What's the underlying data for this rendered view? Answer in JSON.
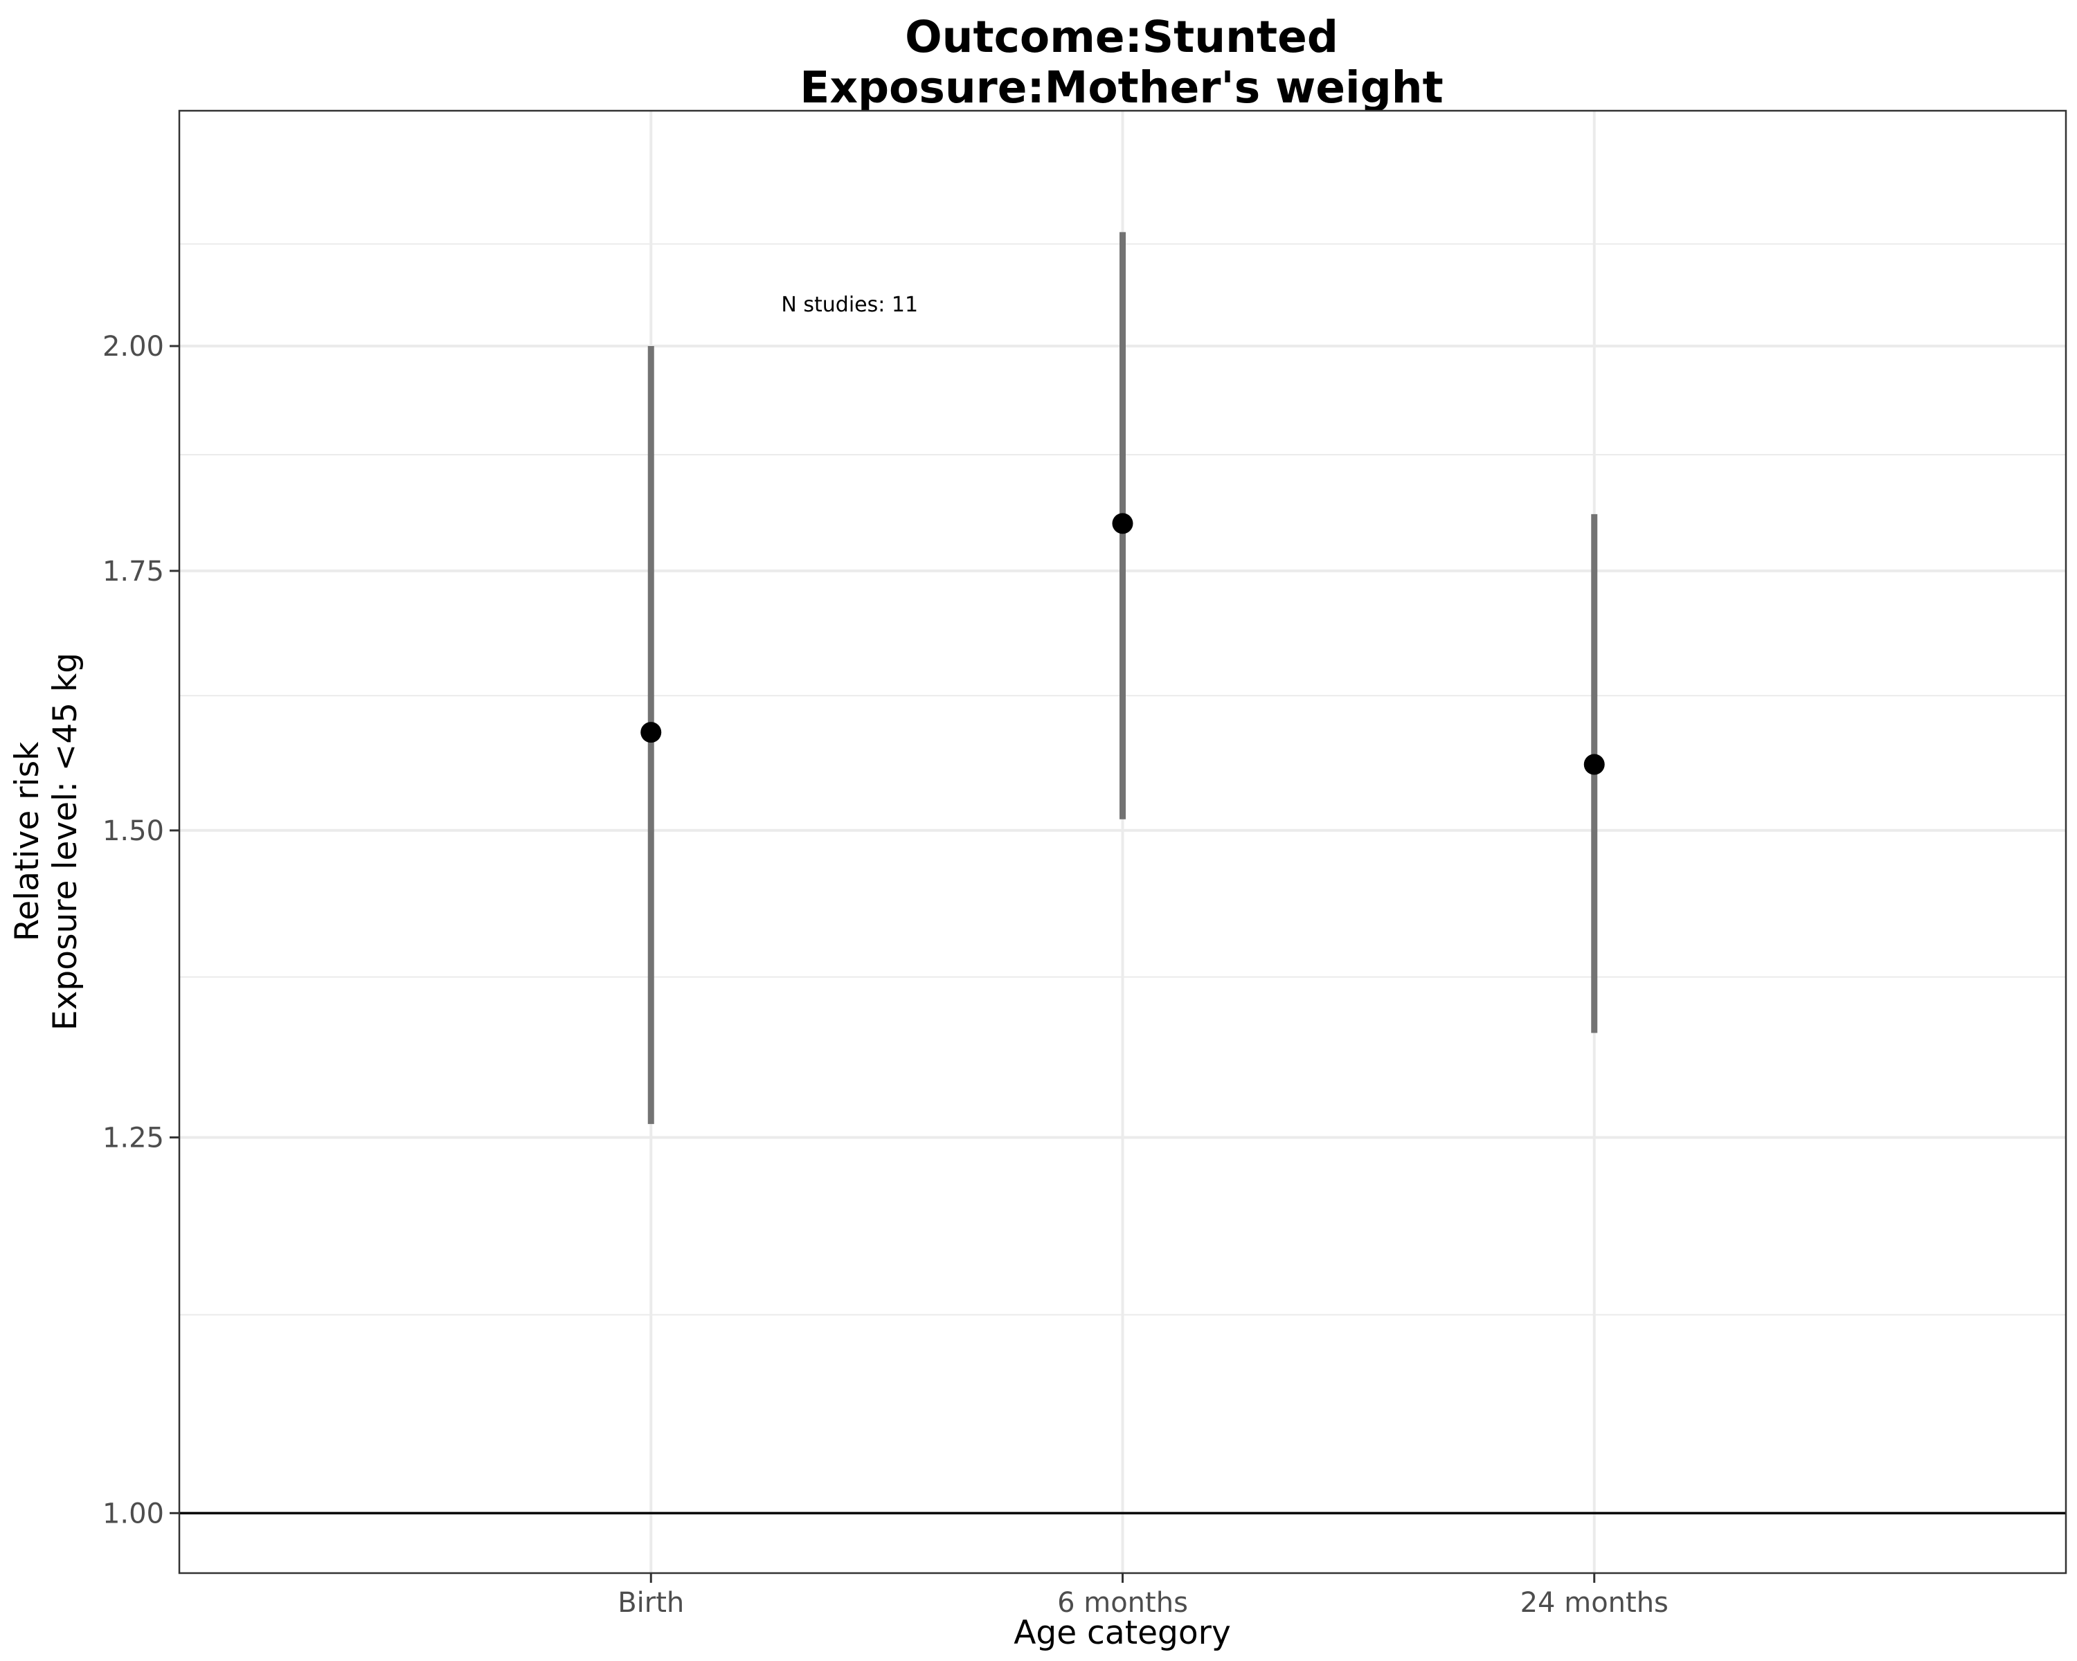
{
  "chart_data": {
    "type": "scatter",
    "title_lines": [
      "Outcome:Stunted",
      "Exposure:Mother's weight"
    ],
    "xlabel": "Age category",
    "ylabel_lines": [
      "Relative risk",
      "Exposure level: <45 kg"
    ],
    "categories": [
      "Birth",
      "6 months",
      "24 months"
    ],
    "points": [
      {
        "category": "Birth",
        "estimate": 1.59,
        "ci_lower": 1.26,
        "ci_upper": 2.0
      },
      {
        "category": "6 months",
        "estimate": 1.8,
        "ci_lower": 1.51,
        "ci_upper": 2.14
      },
      {
        "category": "24 months",
        "estimate": 1.56,
        "ci_lower": 1.33,
        "ci_upper": 1.81
      }
    ],
    "y_scale": "log",
    "ylim": [
      0.965,
      2.3
    ],
    "y_ticks": [
      1.0,
      1.25,
      1.5,
      1.75,
      2.0
    ],
    "y_tick_labels": [
      "1.00",
      "1.25",
      "1.50",
      "1.75",
      "2.00"
    ],
    "y_minor_ticks": [
      1.125,
      1.375,
      1.625,
      1.875,
      2.125
    ],
    "reference_line": 1.0,
    "annotation": {
      "text": "N studies: 11",
      "category": "Birth",
      "y": 2.05
    },
    "grid": true,
    "legend": "none",
    "colors": {
      "point": "#000000",
      "errorbar": "#737373",
      "grid": "#ebebeb",
      "reference_line": "#000000"
    }
  }
}
